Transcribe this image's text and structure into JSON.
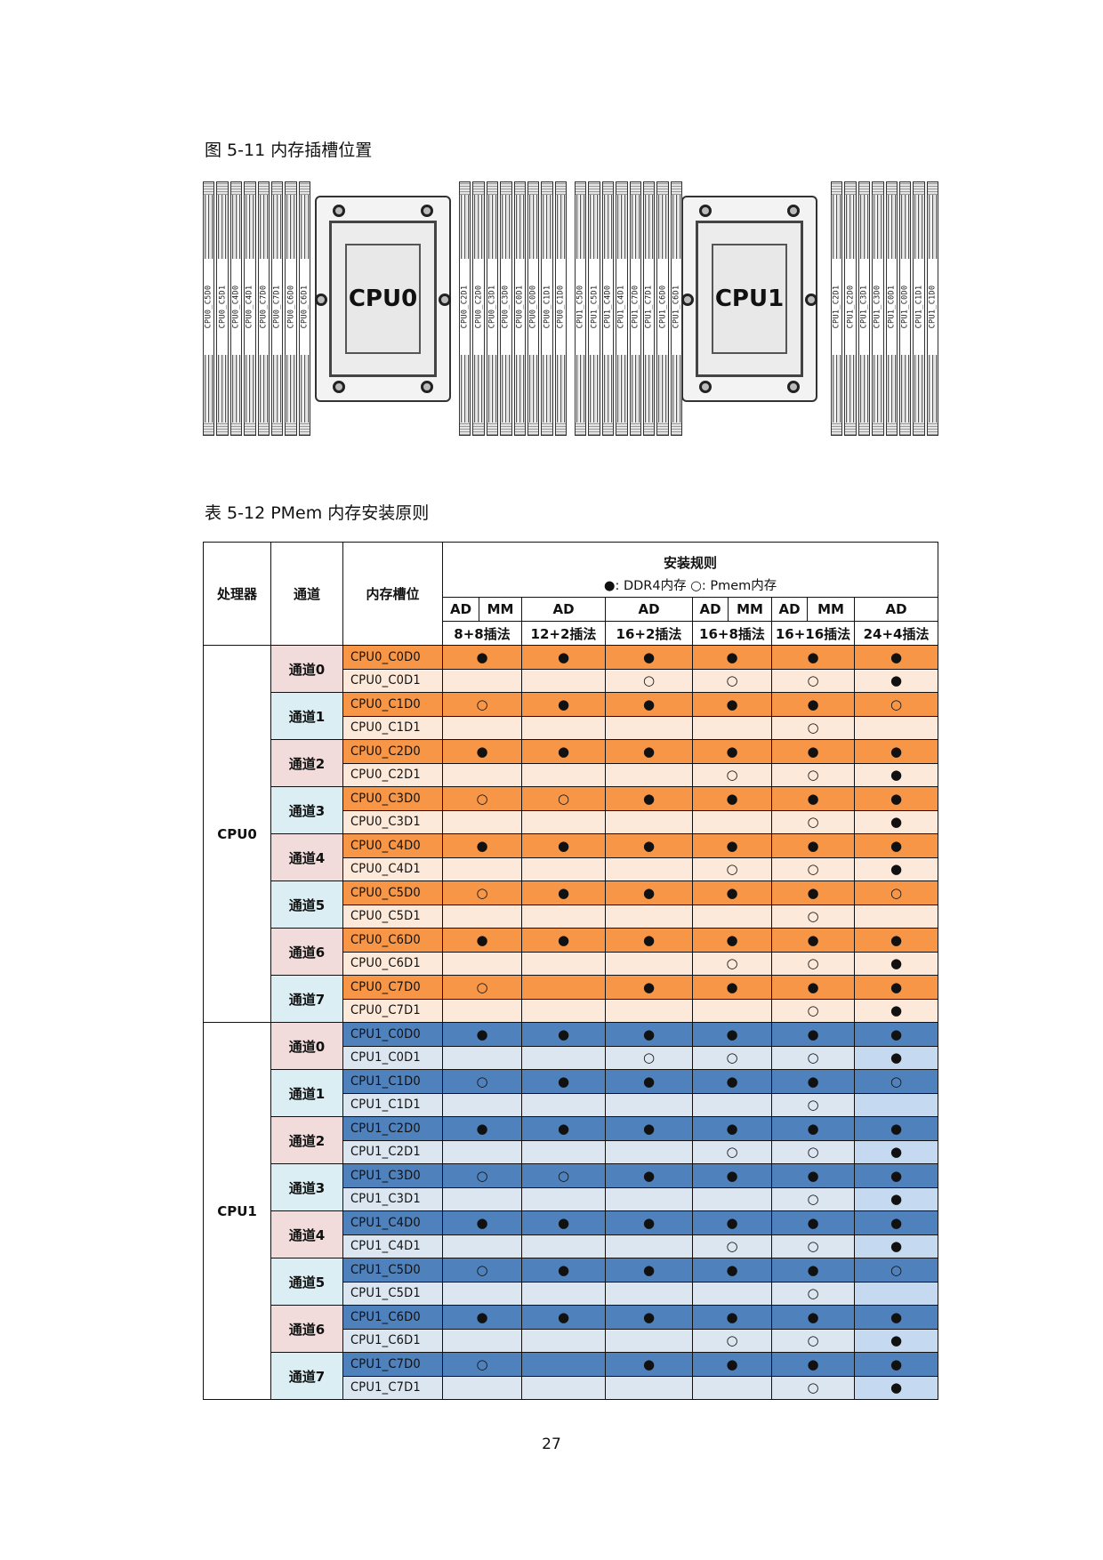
{
  "figure": {
    "caption": "图 5-11 内存插槽位置",
    "cpus": [
      "CPU0",
      "CPU1"
    ],
    "dimm_groups": [
      [
        "CPU0_C5D0",
        "CPU0_C5D1",
        "CPU0_C4D0",
        "CPU0_C4D1",
        "CPU0_C7D0",
        "CPU0_C7D1",
        "CPU0_C6D0",
        "CPU0_C6D1"
      ],
      [
        "CPU0_C2D1",
        "CPU0_C2D0",
        "CPU0_C3D1",
        "CPU0_C3D0",
        "CPU0_C0D1",
        "CPU0_C0D0",
        "CPU0_C1D1",
        "CPU0_C1D0"
      ],
      [
        "CPU1_C5D0",
        "CPU1_C5D1",
        "CPU1_C4D0",
        "CPU1_C4D1",
        "CPU1_C7D0",
        "CPU1_C7D1",
        "CPU1_C6D0",
        "CPU1_C6D1"
      ],
      [
        "CPU1_C2D1",
        "CPU1_C2D0",
        "CPU1_C3D1",
        "CPU1_C3D0",
        "CPU1_C0D1",
        "CPU1_C0D0",
        "CPU1_C1D1",
        "CPU1_C1D0"
      ]
    ]
  },
  "table": {
    "caption": "表 5-12 PMem 内存安装原则",
    "headers": {
      "processor": "处理器",
      "channel": "通道",
      "slot": "内存槽位",
      "rules": "安装规则",
      "legend": "●: DDR4内存 ○:  Pmem内存",
      "modes": [
        "AD",
        "MM",
        "AD",
        "AD",
        "AD",
        "MM",
        "AD",
        "MM",
        "AD"
      ],
      "configs": [
        "8+8插法",
        "12+2插法",
        "16+2插法",
        "16+8插法",
        "16+16插法",
        "24+4插法"
      ]
    },
    "colors": {
      "cpu0_d0": "#F79646",
      "cpu0_d1": "#FDE9D9",
      "cpu1_d0": "#4F81BD",
      "cpu1_d1": "#DCE6F1",
      "cpu1_d1_last_col": "#C5D9F1",
      "channel_even": "#F2DCDB",
      "channel_odd": "#DAEEF3"
    },
    "processors": [
      {
        "name": "CPU0",
        "channels": [
          {
            "label": "通道0",
            "rows": [
              {
                "slot": "CPU0_C0D0",
                "marks": [
                  "●",
                  "●",
                  "●",
                  "●",
                  "●",
                  "●"
                ]
              },
              {
                "slot": "CPU0_C0D1",
                "marks": [
                  "",
                  "",
                  "○",
                  "○",
                  "○",
                  "●"
                ]
              }
            ]
          },
          {
            "label": "通道1",
            "rows": [
              {
                "slot": "CPU0_C1D0",
                "marks": [
                  "○",
                  "●",
                  "●",
                  "●",
                  "●",
                  "○"
                ]
              },
              {
                "slot": "CPU0_C1D1",
                "marks": [
                  "",
                  "",
                  "",
                  "",
                  "○",
                  ""
                ]
              }
            ]
          },
          {
            "label": "通道2",
            "rows": [
              {
                "slot": "CPU0_C2D0",
                "marks": [
                  "●",
                  "●",
                  "●",
                  "●",
                  "●",
                  "●"
                ]
              },
              {
                "slot": "CPU0_C2D1",
                "marks": [
                  "",
                  "",
                  "",
                  "○",
                  "○",
                  "●"
                ]
              }
            ]
          },
          {
            "label": "通道3",
            "rows": [
              {
                "slot": "CPU0_C3D0",
                "marks": [
                  "○",
                  "○",
                  "●",
                  "●",
                  "●",
                  "●"
                ]
              },
              {
                "slot": "CPU0_C3D1",
                "marks": [
                  "",
                  "",
                  "",
                  "",
                  "○",
                  "●"
                ]
              }
            ]
          },
          {
            "label": "通道4",
            "rows": [
              {
                "slot": "CPU0_C4D0",
                "marks": [
                  "●",
                  "●",
                  "●",
                  "●",
                  "●",
                  "●"
                ]
              },
              {
                "slot": "CPU0_C4D1",
                "marks": [
                  "",
                  "",
                  "",
                  "○",
                  "○",
                  "●"
                ]
              }
            ]
          },
          {
            "label": "通道5",
            "rows": [
              {
                "slot": "CPU0_C5D0",
                "marks": [
                  "○",
                  "●",
                  "●",
                  "●",
                  "●",
                  "○"
                ]
              },
              {
                "slot": "CPU0_C5D1",
                "marks": [
                  "",
                  "",
                  "",
                  "",
                  "○",
                  ""
                ]
              }
            ]
          },
          {
            "label": "通道6",
            "rows": [
              {
                "slot": "CPU0_C6D0",
                "marks": [
                  "●",
                  "●",
                  "●",
                  "●",
                  "●",
                  "●"
                ]
              },
              {
                "slot": "CPU0_C6D1",
                "marks": [
                  "",
                  "",
                  "",
                  "○",
                  "○",
                  "●"
                ]
              }
            ]
          },
          {
            "label": "通道7",
            "rows": [
              {
                "slot": "CPU0_C7D0",
                "marks": [
                  "○",
                  "",
                  "●",
                  "●",
                  "●",
                  "●"
                ]
              },
              {
                "slot": "CPU0_C7D1",
                "marks": [
                  "",
                  "",
                  "",
                  "",
                  "○",
                  "●"
                ]
              }
            ]
          }
        ]
      },
      {
        "name": "CPU1",
        "channels": [
          {
            "label": "通道0",
            "rows": [
              {
                "slot": "CPU1_C0D0",
                "marks": [
                  "●",
                  "●",
                  "●",
                  "●",
                  "●",
                  "●"
                ]
              },
              {
                "slot": "CPU1_C0D1",
                "marks": [
                  "",
                  "",
                  "○",
                  "○",
                  "○",
                  "●"
                ]
              }
            ]
          },
          {
            "label": "通道1",
            "rows": [
              {
                "slot": "CPU1_C1D0",
                "marks": [
                  "○",
                  "●",
                  "●",
                  "●",
                  "●",
                  "○"
                ]
              },
              {
                "slot": "CPU1_C1D1",
                "marks": [
                  "",
                  "",
                  "",
                  "",
                  "○",
                  ""
                ]
              }
            ]
          },
          {
            "label": "通道2",
            "rows": [
              {
                "slot": "CPU1_C2D0",
                "marks": [
                  "●",
                  "●",
                  "●",
                  "●",
                  "●",
                  "●"
                ]
              },
              {
                "slot": "CPU1_C2D1",
                "marks": [
                  "",
                  "",
                  "",
                  "○",
                  "○",
                  "●"
                ]
              }
            ]
          },
          {
            "label": "通道3",
            "rows": [
              {
                "slot": "CPU1_C3D0",
                "marks": [
                  "○",
                  "○",
                  "●",
                  "●",
                  "●",
                  "●"
                ]
              },
              {
                "slot": "CPU1_C3D1",
                "marks": [
                  "",
                  "",
                  "",
                  "",
                  "○",
                  "●"
                ]
              }
            ]
          },
          {
            "label": "通道4",
            "rows": [
              {
                "slot": "CPU1_C4D0",
                "marks": [
                  "●",
                  "●",
                  "●",
                  "●",
                  "●",
                  "●"
                ]
              },
              {
                "slot": "CPU1_C4D1",
                "marks": [
                  "",
                  "",
                  "",
                  "○",
                  "○",
                  "●"
                ]
              }
            ]
          },
          {
            "label": "通道5",
            "rows": [
              {
                "slot": "CPU1_C5D0",
                "marks": [
                  "○",
                  "●",
                  "●",
                  "●",
                  "●",
                  "○"
                ]
              },
              {
                "slot": "CPU1_C5D1",
                "marks": [
                  "",
                  "",
                  "",
                  "",
                  "○",
                  ""
                ]
              }
            ]
          },
          {
            "label": "通道6",
            "rows": [
              {
                "slot": "CPU1_C6D0",
                "marks": [
                  "●",
                  "●",
                  "●",
                  "●",
                  "●",
                  "●"
                ]
              },
              {
                "slot": "CPU1_C6D1",
                "marks": [
                  "",
                  "",
                  "",
                  "○",
                  "○",
                  "●"
                ]
              }
            ]
          },
          {
            "label": "通道7",
            "rows": [
              {
                "slot": "CPU1_C7D0",
                "marks": [
                  "○",
                  "",
                  "●",
                  "●",
                  "●",
                  "●"
                ]
              },
              {
                "slot": "CPU1_C7D1",
                "marks": [
                  "",
                  "",
                  "",
                  "",
                  "○",
                  "●"
                ]
              }
            ]
          }
        ]
      }
    ]
  },
  "footer": {
    "page_number": "27"
  }
}
